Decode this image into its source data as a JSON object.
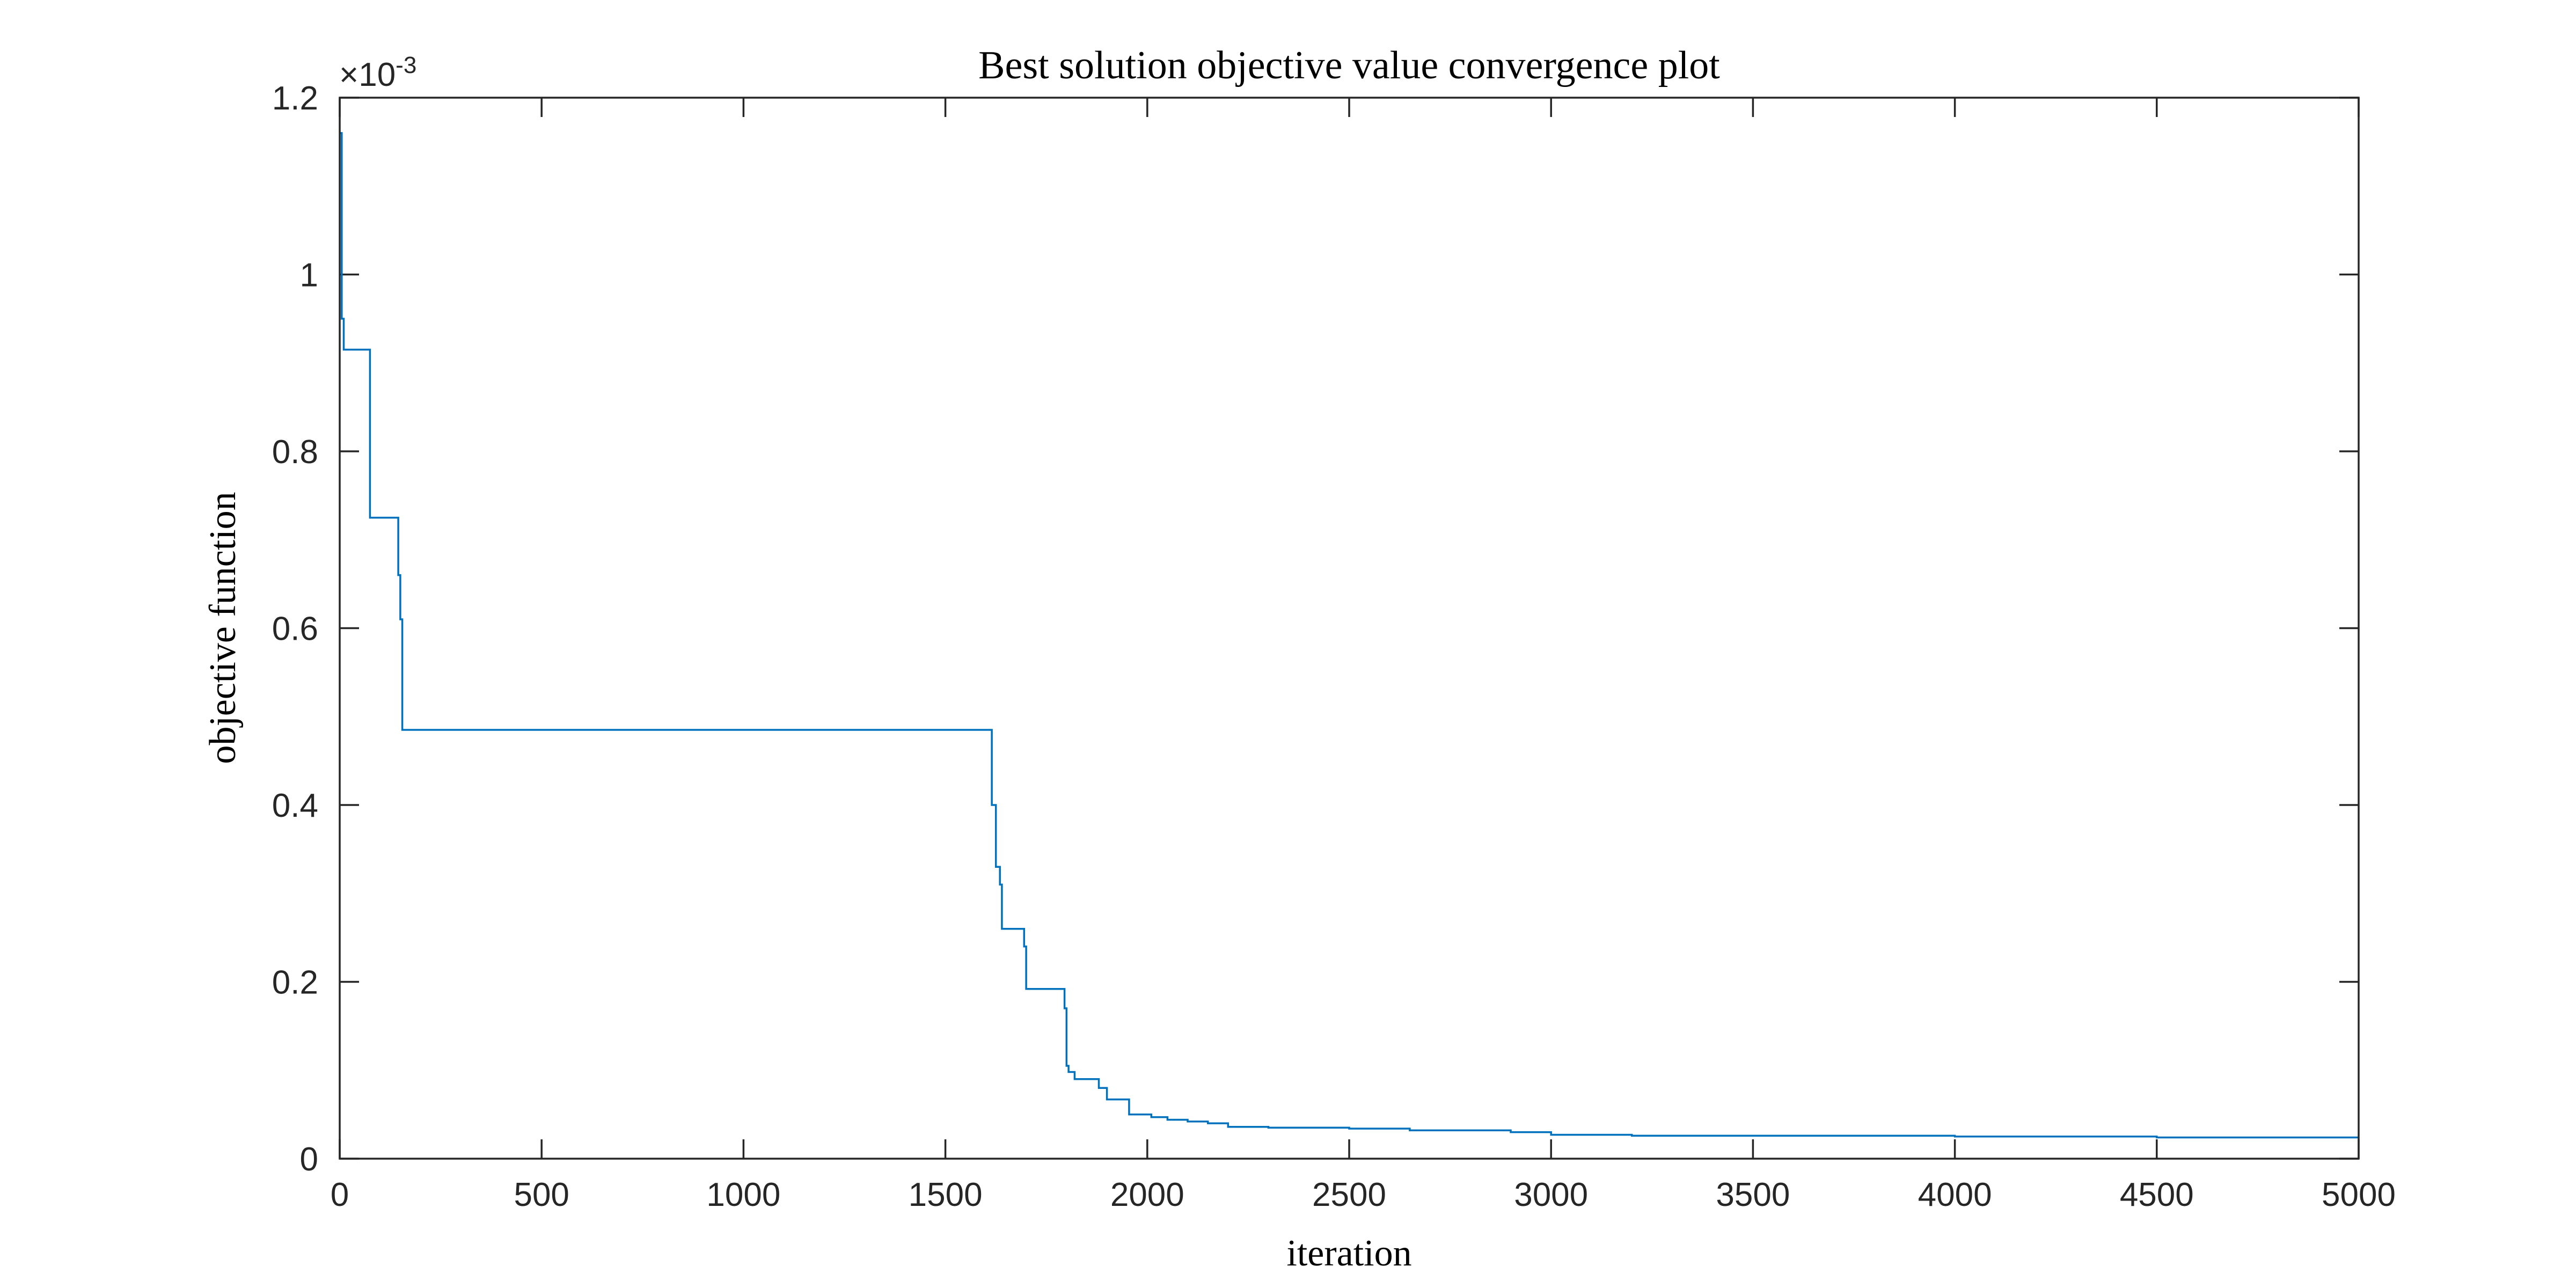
{
  "chart_data": {
    "type": "line",
    "title": "Best solution objective value convergence plot",
    "xlabel": "iteration",
    "ylabel": "objective function",
    "xlim": [
      0,
      5000
    ],
    "ylim": [
      0,
      0.0012
    ],
    "x_ticks": [
      0,
      500,
      1000,
      1500,
      2000,
      2500,
      3000,
      3500,
      4000,
      4500,
      5000
    ],
    "y_ticks": [
      0,
      0.0002,
      0.0004,
      0.0006,
      0.0008,
      0.001,
      0.0012
    ],
    "x_tick_labels": [
      "0",
      "500",
      "1000",
      "1500",
      "2000",
      "2500",
      "3000",
      "3500",
      "4000",
      "4500",
      "5000"
    ],
    "y_tick_labels": [
      "0",
      "0.2",
      "0.4",
      "0.6",
      "0.8",
      "1",
      "1.2"
    ],
    "y_exponent_label": "×10",
    "y_exponent_power": "-3",
    "grid": false,
    "line_color": "#0072BD",
    "series": [
      {
        "x": [
          0,
          5,
          10,
          70,
          75,
          140,
          145,
          150,
          155,
          160,
          1610,
          1615,
          1625,
          1635,
          1640,
          1690,
          1695,
          1700,
          1790,
          1795,
          1800,
          1805,
          1820,
          1870,
          1880,
          1900,
          1950,
          1955,
          2000,
          2010,
          2050,
          2100,
          2150,
          2200,
          2300,
          2500,
          2650,
          2900,
          3000,
          3200,
          3500,
          4000,
          4500,
          5000
        ],
        "y": [
          0.00116,
          0.00095,
          0.000915,
          0.000915,
          0.000725,
          0.000725,
          0.00066,
          0.00061,
          0.000485,
          0.000485,
          0.000485,
          0.0004,
          0.00033,
          0.00031,
          0.00026,
          0.00026,
          0.00024,
          0.000192,
          0.000192,
          0.00017,
          0.000105,
          9.8e-05,
          9e-05,
          9e-05,
          8e-05,
          6.7e-05,
          6.7e-05,
          5e-05,
          5e-05,
          4.7e-05,
          4.4e-05,
          4.2e-05,
          4e-05,
          3.6e-05,
          3.5e-05,
          3.4e-05,
          3.2e-05,
          3e-05,
          2.7e-05,
          2.6e-05,
          2.6e-05,
          2.5e-05,
          2.4e-05,
          2.4e-05
        ]
      }
    ]
  }
}
